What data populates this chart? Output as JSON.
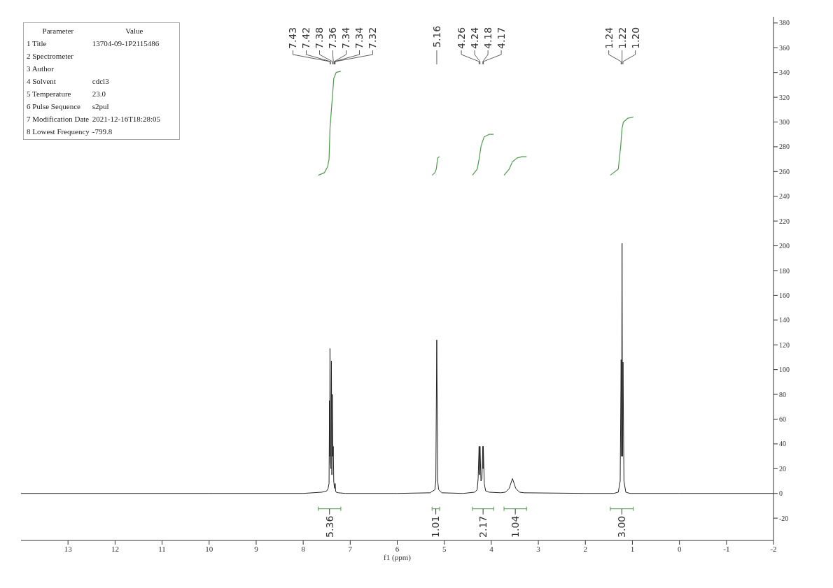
{
  "chart_data": {
    "type": "line",
    "xlabel": "f1 (ppm)",
    "xlim": [
      14,
      -2
    ],
    "xticks": [
      13,
      12,
      11,
      10,
      9,
      8,
      7,
      6,
      5,
      4,
      3,
      2,
      1,
      0,
      -1,
      -2
    ],
    "ylim": [
      -38,
      385
    ],
    "yticks": [
      -20,
      0,
      20,
      40,
      60,
      80,
      100,
      120,
      140,
      160,
      180,
      200,
      220,
      240,
      260,
      280,
      300,
      320,
      340,
      360,
      380
    ],
    "grid": false,
    "legend": false,
    "marker": "none",
    "line_style": "solid",
    "series": [
      {
        "color": "#222222",
        "x": [
          14,
          10,
          8,
          7.6,
          7.5,
          7.47,
          7.45,
          7.44,
          7.435,
          7.43,
          7.42,
          7.41,
          7.4,
          7.39,
          7.38,
          7.37,
          7.36,
          7.35,
          7.34,
          7.33,
          7.32,
          7.31,
          7.3,
          7.25,
          7.1,
          6,
          5.3,
          5.2,
          5.18,
          5.16,
          5.14,
          5.12,
          5.05,
          4.6,
          4.35,
          4.3,
          4.28,
          4.26,
          4.25,
          4.24,
          4.22,
          4.2,
          4.18,
          4.175,
          4.17,
          4.15,
          4.12,
          4.05,
          3.8,
          3.7,
          3.62,
          3.55,
          3.48,
          3.4,
          3.3,
          2,
          1.4,
          1.3,
          1.26,
          1.24,
          1.23,
          1.22,
          1.21,
          1.2,
          1.18,
          1.14,
          1.05,
          0,
          -2
        ],
        "values": [
          0,
          0,
          0,
          1,
          2,
          4,
          8,
          75,
          30,
          117,
          25,
          20,
          107,
          15,
          80,
          30,
          38,
          10,
          6,
          4,
          8,
          2,
          1,
          0.5,
          0,
          0,
          0.5,
          3,
          10,
          124,
          10,
          3,
          0.5,
          0,
          1,
          3,
          12,
          38,
          15,
          38,
          10,
          12,
          38,
          20,
          38,
          8,
          2,
          1,
          0.5,
          1,
          4,
          12,
          4,
          1,
          0.5,
          0,
          0,
          1,
          10,
          108,
          30,
          202,
          30,
          106,
          10,
          1,
          0,
          0,
          0
        ]
      },
      {
        "color": "#4e9a4e",
        "x": [
          7.68,
          7.55,
          7.48,
          7.45,
          7.43,
          7.41,
          7.38,
          7.35,
          7.3,
          7.2
        ],
        "values": [
          257,
          259,
          264,
          270,
          295,
          305,
          320,
          335,
          340,
          341
        ]
      },
      {
        "color": "#4e9a4e",
        "x": [
          5.26,
          5.2,
          5.17,
          5.16,
          5.14,
          5.1
        ],
        "values": [
          257,
          259,
          262,
          265,
          271,
          272
        ]
      },
      {
        "color": "#4e9a4e",
        "x": [
          4.4,
          4.3,
          4.26,
          4.22,
          4.19,
          4.15,
          4.05,
          3.95
        ],
        "values": [
          257,
          262,
          270,
          280,
          284,
          288,
          290,
          290
        ]
      },
      {
        "color": "#4e9a4e",
        "x": [
          3.73,
          3.62,
          3.55,
          3.45,
          3.35,
          3.25
        ],
        "values": [
          257,
          262,
          268,
          271,
          272,
          272
        ]
      },
      {
        "color": "#4e9a4e",
        "x": [
          1.47,
          1.3,
          1.25,
          1.22,
          1.19,
          1.1,
          0.98
        ],
        "values": [
          257,
          262,
          280,
          295,
          300,
          303,
          304
        ]
      }
    ],
    "annotations": [
      {
        "text": "7.43",
        "x": 7.43
      },
      {
        "text": "7.42",
        "x": 7.42
      },
      {
        "text": "7.38",
        "x": 7.38
      },
      {
        "text": "7.36",
        "x": 7.36
      },
      {
        "text": "7.34",
        "x": 7.34
      },
      {
        "text": "7.34",
        "x": 7.335
      },
      {
        "text": "7.32",
        "x": 7.32
      },
      {
        "text": "5.16",
        "x": 5.16
      },
      {
        "text": "4.26",
        "x": 4.26
      },
      {
        "text": "4.24",
        "x": 4.24
      },
      {
        "text": "4.18",
        "x": 4.18
      },
      {
        "text": "4.17",
        "x": 4.17
      },
      {
        "text": "1.24",
        "x": 1.24
      },
      {
        "text": "1.22",
        "x": 1.22
      },
      {
        "text": "1.20",
        "x": 1.2
      },
      "5.36",
      "1.01",
      "2.17",
      "1.04",
      "3.00",
      "Parameter\tValue",
      "1 Title\t13704-09-1P2115486",
      "2 Spectrometer",
      "3 Author",
      "4 Solvent\tcdcl3",
      "5 Temperature\t23.0",
      "6 Pulse Sequence\ts2pul",
      "7 Modification Date\t2021-12-16T18:28:05",
      "8 Lowest Frequency\t-799.8"
    ]
  }
}
